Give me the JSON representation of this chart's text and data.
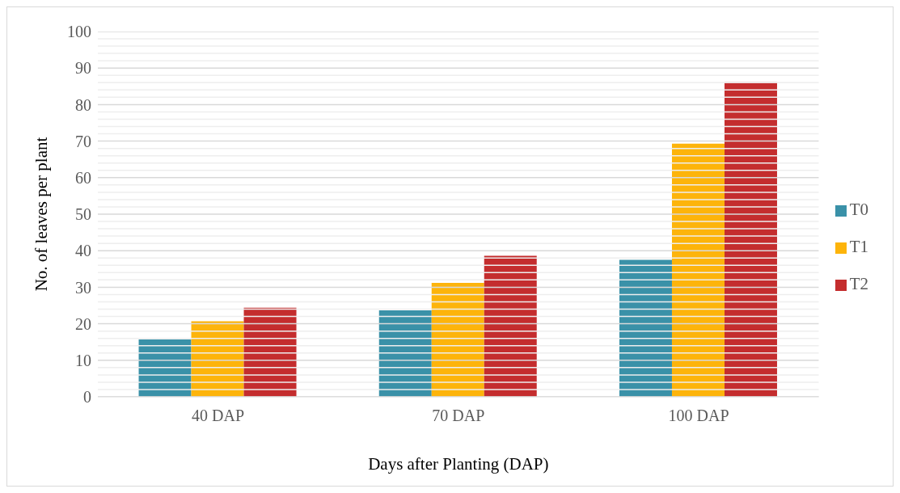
{
  "chart_data": {
    "type": "bar",
    "xlabel": "Days after Planting (DAP)",
    "ylabel": "No. of leaves per plant",
    "categories": [
      "40 DAP",
      "70 DAP",
      "100 DAP"
    ],
    "series": [
      {
        "name": "T0",
        "color": "#3a91a8",
        "values": [
          15.7,
          23.7,
          37.5
        ]
      },
      {
        "name": "T1",
        "color": "#fdb40b",
        "values": [
          20.7,
          31.2,
          69.3
        ]
      },
      {
        "name": "T2",
        "color": "#c42d2e",
        "values": [
          24.4,
          38.6,
          86.1
        ]
      }
    ],
    "ylim": [
      0,
      100
    ],
    "yticks": [
      0,
      {
        "value": 2,
        "label": null
      },
      {
        "value": 4,
        "label": null
      },
      {
        "value": 6,
        "label": null
      },
      {
        "value": 8,
        "label": null
      },
      10,
      {
        "value": 12,
        "label": null
      },
      {
        "value": 14,
        "label": null
      },
      {
        "value": 16,
        "label": null
      },
      {
        "value": 18,
        "label": null
      },
      20,
      {
        "value": 22,
        "label": null
      },
      {
        "value": 24,
        "label": null
      },
      {
        "value": 26,
        "label": null
      },
      {
        "value": 28,
        "label": null
      },
      30,
      {
        "value": 32,
        "label": null
      },
      {
        "value": 34,
        "label": null
      },
      {
        "value": 36,
        "label": null
      },
      {
        "value": 38,
        "label": null
      },
      40,
      {
        "value": 42,
        "label": null
      },
      {
        "value": 44,
        "label": null
      },
      {
        "value": 46,
        "label": null
      },
      {
        "value": 48,
        "label": null
      },
      50,
      {
        "value": 52,
        "label": null
      },
      {
        "value": 54,
        "label": null
      },
      {
        "value": 56,
        "label": null
      },
      {
        "value": 58,
        "label": null
      },
      60,
      {
        "value": 62,
        "label": null
      },
      {
        "value": 64,
        "label": null
      },
      {
        "value": 66,
        "label": null
      },
      {
        "value": 68,
        "label": null
      },
      70,
      {
        "value": 72,
        "label": null
      },
      {
        "value": 74,
        "label": null
      },
      {
        "value": 76,
        "label": null
      },
      {
        "value": 78,
        "label": null
      },
      80,
      {
        "value": 82,
        "label": null
      },
      {
        "value": 84,
        "label": null
      },
      {
        "value": 86,
        "label": null
      },
      {
        "value": 88,
        "label": null
      },
      90,
      {
        "value": 92,
        "label": null
      },
      {
        "value": 94,
        "label": null
      },
      {
        "value": 96,
        "label": null
      },
      {
        "value": 98,
        "label": null
      },
      100
    ],
    "grid": "y",
    "legend": "right"
  }
}
